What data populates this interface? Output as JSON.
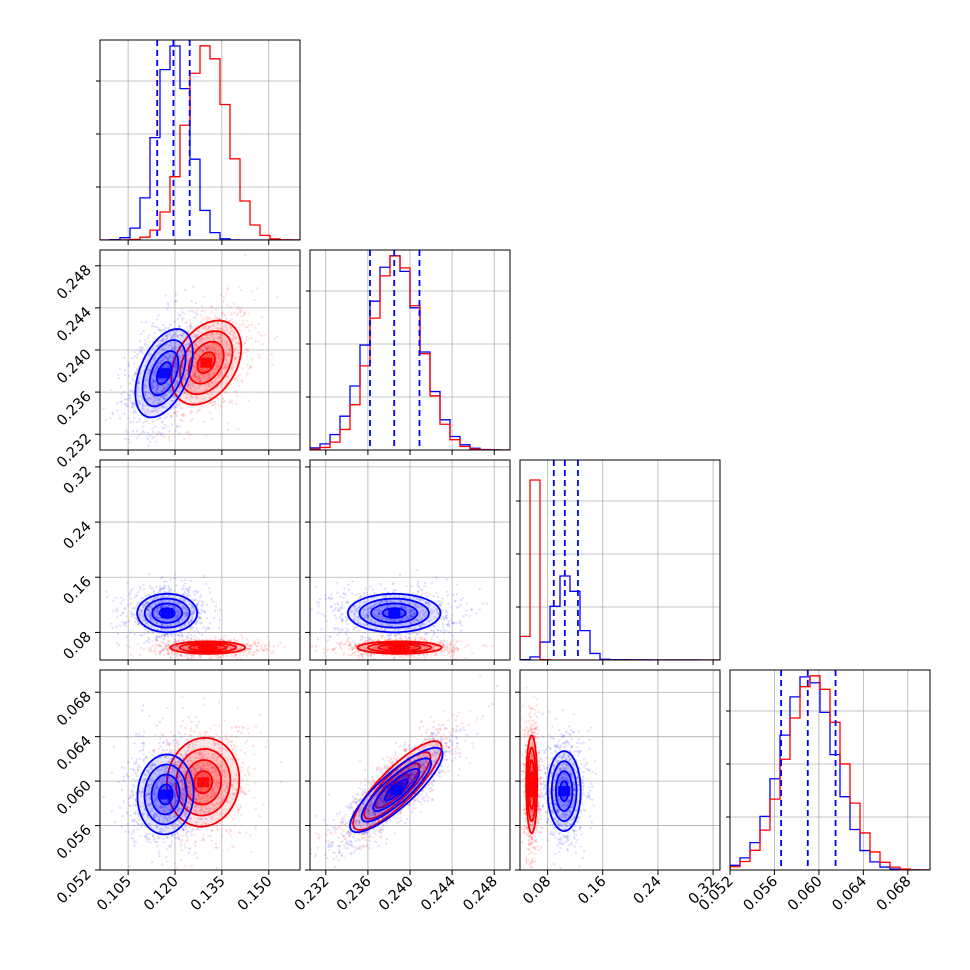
{
  "chart_data": {
    "type": "corner",
    "grid": true,
    "legend": "none",
    "colors": {
      "model_a": "#0000ff",
      "model_b": "#ff0000",
      "quantile_line": "#0000ff"
    },
    "parameters": [
      {
        "range": [
          0.096,
          0.16
        ],
        "ticks": [
          0.105,
          0.12,
          0.135,
          0.15
        ],
        "tick_labels": [
          "0.105",
          "0.120",
          "0.135",
          "0.150"
        ],
        "blue": {
          "mean": 0.1195,
          "sd": 0.0052
        },
        "red": {
          "mean": 0.1302,
          "sd": 0.0068
        },
        "quantiles": [
          0.1143,
          0.1195,
          0.1247
        ]
      },
      {
        "range": [
          0.2305,
          0.2495
        ],
        "ticks": [
          0.232,
          0.236,
          0.24,
          0.244,
          0.248
        ],
        "tick_labels": [
          "0.232",
          "0.236",
          "0.240",
          "0.244",
          "0.248"
        ],
        "blue": {
          "mean": 0.2385,
          "sd": 0.0025
        },
        "red": {
          "mean": 0.2387,
          "sd": 0.0023
        },
        "quantiles": [
          0.2362,
          0.2385,
          0.2409
        ]
      },
      {
        "range": [
          0.04,
          0.33
        ],
        "ticks": [
          0.08,
          0.16,
          0.24,
          0.32
        ],
        "tick_labels": [
          "0.08",
          "0.16",
          "0.24",
          "0.32"
        ],
        "blue": {
          "mean": 0.108,
          "sd": 0.018,
          "tail": 0.4
        },
        "red": {
          "mean": 0.058,
          "sd": 0.005
        },
        "quantiles": [
          0.089,
          0.105,
          0.124
        ]
      },
      {
        "range": [
          0.052,
          0.07
        ],
        "ticks": [
          0.052,
          0.056,
          0.06,
          0.064,
          0.068
        ],
        "tick_labels": [
          "0.052",
          "0.056",
          "0.060",
          "0.064",
          "0.068"
        ],
        "blue": {
          "mean": 0.059,
          "sd": 0.0024
        },
        "red": {
          "mean": 0.0596,
          "sd": 0.0025
        },
        "quantiles": [
          0.0566,
          0.059,
          0.0615
        ]
      }
    ],
    "pairs": [
      {
        "x": 0,
        "y": 1,
        "blue_center": [
          0.1165,
          0.2378
        ],
        "red_center": [
          0.13,
          0.2388
        ],
        "blue_sd": [
          0.0046,
          0.0021
        ],
        "red_sd": [
          0.0056,
          0.002
        ],
        "blue_corr": 0.45,
        "red_corr": 0.35
      },
      {
        "x": 0,
        "y": 2,
        "blue_center": [
          0.1175,
          0.108
        ],
        "red_center": [
          0.1305,
          0.058
        ],
        "blue_sd": [
          0.0048,
          0.014
        ],
        "red_sd": [
          0.006,
          0.0045
        ],
        "blue_corr": 0.0,
        "red_corr": 0.0
      },
      {
        "x": 1,
        "y": 2,
        "blue_center": [
          0.2385,
          0.108
        ],
        "red_center": [
          0.239,
          0.058
        ],
        "blue_sd": [
          0.0022,
          0.014
        ],
        "red_sd": [
          0.002,
          0.0045
        ],
        "blue_corr": 0.0,
        "red_corr": 0.0
      },
      {
        "x": 0,
        "y": 3,
        "blue_center": [
          0.117,
          0.0588
        ],
        "red_center": [
          0.129,
          0.0599
        ],
        "blue_sd": [
          0.0045,
          0.0018
        ],
        "red_sd": [
          0.0058,
          0.002
        ],
        "blue_corr": 0.05,
        "red_corr": 0.05
      },
      {
        "x": 1,
        "y": 3,
        "blue_center": [
          0.2387,
          0.0592
        ],
        "red_center": [
          0.2388,
          0.0596
        ],
        "blue_sd": [
          0.0022,
          0.0019
        ],
        "red_sd": [
          0.0021,
          0.002
        ],
        "blue_corr": 0.85,
        "red_corr": 0.85
      },
      {
        "x": 2,
        "y": 3,
        "blue_center": [
          0.104,
          0.0591
        ],
        "red_center": [
          0.057,
          0.0597
        ],
        "blue_sd": [
          0.012,
          0.0018
        ],
        "red_sd": [
          0.004,
          0.0022
        ],
        "blue_corr": 0.0,
        "red_corr": 0.0
      }
    ]
  }
}
